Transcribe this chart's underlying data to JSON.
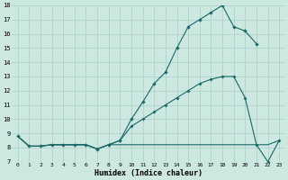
{
  "xlabel": "Humidex (Indice chaleur)",
  "bg_color": "#cde8e0",
  "grid_color": "#a8cfc8",
  "line_color": "#1a6868",
  "xlim": [
    -0.5,
    23.5
  ],
  "ylim": [
    7,
    18
  ],
  "yticks": [
    7,
    8,
    9,
    10,
    11,
    12,
    13,
    14,
    15,
    16,
    17,
    18
  ],
  "xticks": [
    0,
    1,
    2,
    3,
    4,
    5,
    6,
    7,
    8,
    9,
    10,
    11,
    12,
    13,
    14,
    15,
    16,
    17,
    18,
    19,
    20,
    21,
    22,
    23
  ],
  "line1_x": [
    0,
    1,
    2,
    3,
    4,
    5,
    6,
    7,
    8,
    9,
    10,
    11,
    12,
    13,
    14,
    15,
    16,
    17,
    18,
    19,
    20,
    21
  ],
  "line1_y": [
    8.8,
    8.1,
    8.1,
    8.2,
    8.2,
    8.2,
    8.2,
    7.9,
    8.2,
    8.5,
    10.0,
    11.2,
    12.5,
    13.3,
    15.0,
    16.5,
    17.0,
    17.5,
    18.0,
    16.5,
    16.2,
    15.3
  ],
  "line2_x": [
    0,
    1,
    2,
    3,
    4,
    5,
    6,
    7,
    8,
    9,
    10,
    11,
    12,
    13,
    14,
    15,
    16,
    17,
    18,
    19,
    20,
    21,
    22,
    23
  ],
  "line2_y": [
    8.8,
    8.1,
    8.1,
    8.2,
    8.2,
    8.2,
    8.2,
    7.9,
    8.2,
    8.5,
    9.5,
    10.0,
    10.5,
    11.0,
    11.5,
    12.0,
    12.5,
    12.8,
    13.0,
    13.0,
    11.5,
    8.2,
    7.0,
    8.5
  ],
  "line3_x": [
    0,
    1,
    2,
    3,
    4,
    5,
    6,
    7,
    8,
    9,
    10,
    11,
    12,
    13,
    14,
    15,
    16,
    17,
    18,
    19,
    20,
    21,
    22,
    23
  ],
  "line3_y": [
    8.8,
    8.1,
    8.1,
    8.2,
    8.2,
    8.2,
    8.2,
    7.9,
    8.2,
    8.2,
    8.2,
    8.2,
    8.2,
    8.2,
    8.2,
    8.2,
    8.2,
    8.2,
    8.2,
    8.2,
    8.2,
    8.2,
    8.2,
    8.5
  ],
  "line1_marker_x": [
    0,
    1,
    2,
    3,
    4,
    5,
    6,
    7,
    8,
    9,
    10,
    11,
    12,
    13,
    14,
    15,
    16,
    17,
    18,
    19,
    20,
    21
  ],
  "line2_marker_x": [
    8,
    9,
    10,
    11,
    12,
    13,
    14,
    15,
    16,
    17,
    18,
    19,
    20,
    21,
    22,
    23
  ]
}
